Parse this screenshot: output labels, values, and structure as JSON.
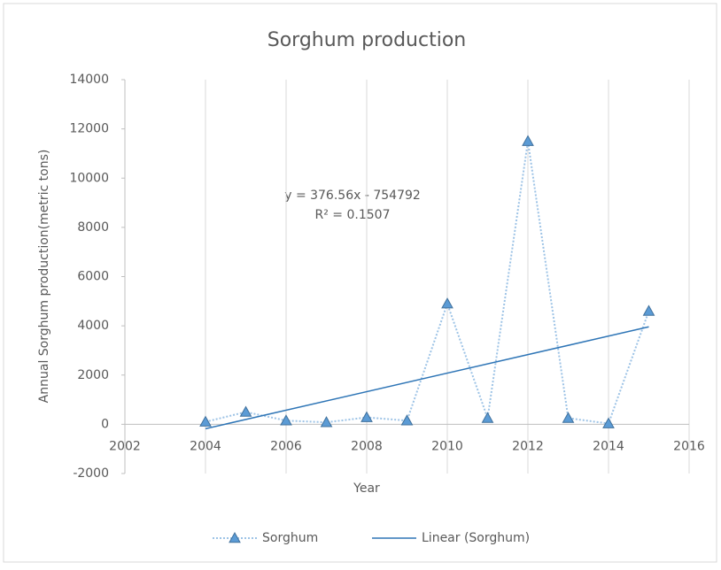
{
  "chart_data": {
    "type": "line",
    "title": "Sorghum production",
    "x_label": "Year",
    "y_label": "Annual Sorghum production(metric tons)",
    "x": [
      2004,
      2005,
      2006,
      2007,
      2008,
      2009,
      2010,
      2011,
      2012,
      2013,
      2014,
      2015
    ],
    "series": [
      {
        "name": "Sorghum",
        "color": "#5b9bd5",
        "values": [
          100,
          500,
          150,
          80,
          280,
          150,
          4900,
          250,
          11500,
          250,
          30,
          4600
        ]
      },
      {
        "name": "Linear (Sorghum)",
        "color": "#2e75b6",
        "x": [
          2004,
          2015
        ],
        "values": [
          -180,
          3960
        ]
      }
    ],
    "annotations": [
      "y = 376.56x - 754792",
      "R² = 0.1507"
    ],
    "xlim": [
      2002,
      2016
    ],
    "xticks": [
      2002,
      2004,
      2006,
      2008,
      2010,
      2012,
      2014,
      2016
    ],
    "ylim": [
      -2000,
      14000
    ],
    "yticks": [
      -2000,
      0,
      2000,
      4000,
      6000,
      8000,
      10000,
      12000,
      14000
    ],
    "grid": true,
    "legend": "bottom"
  }
}
